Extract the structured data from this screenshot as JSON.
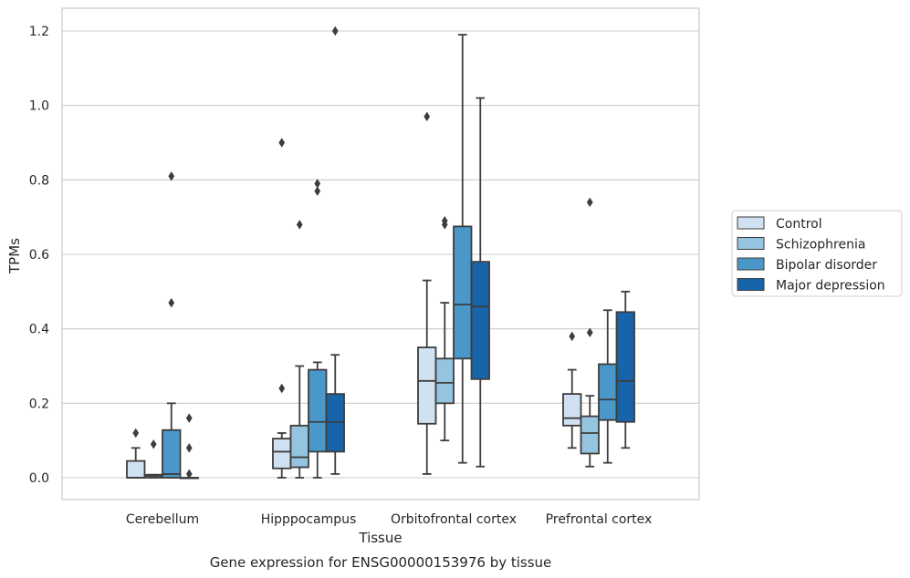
{
  "chart_data": {
    "type": "box",
    "title": "",
    "caption": "Gene expression for ENSG00000153976 by tissue",
    "xlabel": "Tissue",
    "ylabel": "TPMs",
    "ylim": [
      -0.06,
      1.26
    ],
    "yticks": [
      0.0,
      0.2,
      0.4,
      0.6,
      0.8,
      1.0,
      1.2
    ],
    "ytick_labels": [
      "0.0",
      "0.2",
      "0.4",
      "0.6",
      "0.8",
      "1.0",
      "1.2"
    ],
    "grid": "horizontal",
    "legend_position": "right",
    "categories": [
      "Cerebellum",
      "Hipppocampus",
      "Orbitofrontal cortex",
      "Prefrontal cortex"
    ],
    "series": [
      {
        "name": "Control",
        "color": "#d0e1f2",
        "boxes": [
          {
            "whislo": 0.0,
            "q1": 0.0,
            "med": 0.0,
            "q3": 0.045,
            "whishi": 0.08,
            "fliers": [
              0.12
            ]
          },
          {
            "whislo": 0.0,
            "q1": 0.025,
            "med": 0.07,
            "q3": 0.105,
            "whishi": 0.12,
            "fliers": [
              0.24,
              0.9
            ]
          },
          {
            "whislo": 0.01,
            "q1": 0.145,
            "med": 0.26,
            "q3": 0.35,
            "whishi": 0.53,
            "fliers": [
              0.97
            ]
          },
          {
            "whislo": 0.08,
            "q1": 0.14,
            "med": 0.16,
            "q3": 0.225,
            "whishi": 0.29,
            "fliers": [
              0.38
            ]
          }
        ]
      },
      {
        "name": "Schizophrenia",
        "color": "#94c4df",
        "boxes": [
          {
            "whislo": 0.0,
            "q1": 0.0,
            "med": 0.005,
            "q3": 0.008,
            "whishi": 0.008,
            "fliers": [
              0.09
            ]
          },
          {
            "whislo": 0.0,
            "q1": 0.028,
            "med": 0.055,
            "q3": 0.14,
            "whishi": 0.3,
            "fliers": [
              0.68
            ]
          },
          {
            "whislo": 0.1,
            "q1": 0.2,
            "med": 0.255,
            "q3": 0.32,
            "whishi": 0.47,
            "fliers": [
              0.68,
              0.69
            ]
          },
          {
            "whislo": 0.03,
            "q1": 0.065,
            "med": 0.12,
            "q3": 0.165,
            "whishi": 0.22,
            "fliers": [
              0.39,
              0.74
            ]
          }
        ]
      },
      {
        "name": "Bipolar disorder",
        "color": "#4a98c9",
        "boxes": [
          {
            "whislo": 0.0,
            "q1": 0.0,
            "med": 0.01,
            "q3": 0.128,
            "whishi": 0.2,
            "fliers": [
              0.47,
              0.81
            ]
          },
          {
            "whislo": 0.0,
            "q1": 0.07,
            "med": 0.15,
            "q3": 0.29,
            "whishi": 0.31,
            "fliers": [
              0.77,
              0.79
            ]
          },
          {
            "whislo": 0.04,
            "q1": 0.32,
            "med": 0.465,
            "q3": 0.675,
            "whishi": 1.19,
            "fliers": []
          },
          {
            "whislo": 0.04,
            "q1": 0.155,
            "med": 0.21,
            "q3": 0.305,
            "whishi": 0.45,
            "fliers": []
          }
        ]
      },
      {
        "name": "Major depression",
        "color": "#1764ab",
        "boxes": [
          {
            "whislo": 0.0,
            "q1": 0.0,
            "med": 0.0,
            "q3": 0.0,
            "whishi": 0.0,
            "fliers": [
              0.01,
              0.08,
              0.16
            ]
          },
          {
            "whislo": 0.01,
            "q1": 0.07,
            "med": 0.15,
            "q3": 0.225,
            "whishi": 0.33,
            "fliers": [
              1.2
            ]
          },
          {
            "whislo": 0.03,
            "q1": 0.265,
            "med": 0.46,
            "q3": 0.58,
            "whishi": 1.02,
            "fliers": []
          },
          {
            "whislo": 0.08,
            "q1": 0.15,
            "med": 0.26,
            "q3": 0.445,
            "whishi": 0.5,
            "fliers": []
          }
        ]
      }
    ]
  }
}
